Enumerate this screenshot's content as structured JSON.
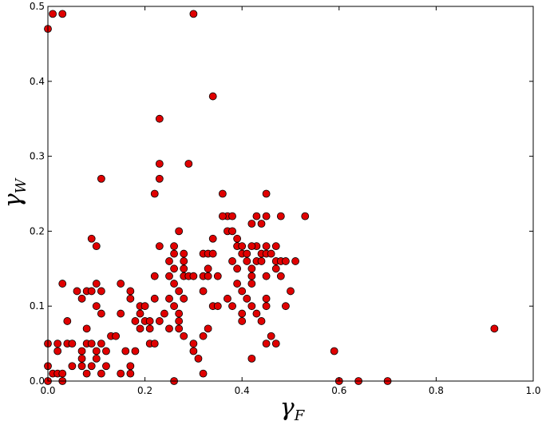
{
  "chart_data": {
    "type": "scatter",
    "title": "",
    "xlabel": "γ",
    "xlabel_sub": "F",
    "ylabel": "γ",
    "ylabel_sub": "W",
    "xlim": [
      0.0,
      1.0
    ],
    "ylim": [
      0.0,
      0.5
    ],
    "xticks": [
      0.0,
      0.2,
      0.4,
      0.6,
      0.8,
      1.0
    ],
    "xtick_labels": [
      "0.0",
      "0.2",
      "0.4",
      "0.6",
      "0.8",
      "1.0"
    ],
    "yticks": [
      0.0,
      0.1,
      0.2,
      0.3,
      0.4,
      0.5
    ],
    "ytick_labels": [
      "0.0",
      "0.1",
      "0.2",
      "0.3",
      "0.4",
      "0.5"
    ],
    "grid": false,
    "legend": "none",
    "marker_color": "#e00000",
    "series": [
      {
        "points": [
          [
            0.0,
            0.47
          ],
          [
            0.01,
            0.49
          ],
          [
            0.03,
            0.49
          ],
          [
            0.3,
            0.49
          ],
          [
            0.34,
            0.38
          ],
          [
            0.23,
            0.35
          ],
          [
            0.23,
            0.29
          ],
          [
            0.29,
            0.29
          ],
          [
            0.11,
            0.27
          ],
          [
            0.23,
            0.27
          ],
          [
            0.22,
            0.25
          ],
          [
            0.36,
            0.25
          ],
          [
            0.45,
            0.25
          ],
          [
            0.37,
            0.22
          ],
          [
            0.38,
            0.22
          ],
          [
            0.36,
            0.22
          ],
          [
            0.43,
            0.22
          ],
          [
            0.45,
            0.22
          ],
          [
            0.48,
            0.22
          ],
          [
            0.53,
            0.22
          ],
          [
            0.44,
            0.21
          ],
          [
            0.42,
            0.21
          ],
          [
            0.27,
            0.2
          ],
          [
            0.37,
            0.2
          ],
          [
            0.38,
            0.2
          ],
          [
            0.39,
            0.19
          ],
          [
            0.34,
            0.19
          ],
          [
            0.09,
            0.19
          ],
          [
            0.23,
            0.18
          ],
          [
            0.26,
            0.18
          ],
          [
            0.43,
            0.18
          ],
          [
            0.45,
            0.18
          ],
          [
            0.47,
            0.18
          ],
          [
            0.1,
            0.18
          ],
          [
            0.39,
            0.18
          ],
          [
            0.4,
            0.18
          ],
          [
            0.42,
            0.18
          ],
          [
            0.26,
            0.17
          ],
          [
            0.28,
            0.17
          ],
          [
            0.32,
            0.17
          ],
          [
            0.33,
            0.17
          ],
          [
            0.34,
            0.17
          ],
          [
            0.4,
            0.17
          ],
          [
            0.41,
            0.17
          ],
          [
            0.44,
            0.17
          ],
          [
            0.45,
            0.17
          ],
          [
            0.46,
            0.17
          ],
          [
            0.43,
            0.16
          ],
          [
            0.25,
            0.16
          ],
          [
            0.28,
            0.16
          ],
          [
            0.38,
            0.16
          ],
          [
            0.41,
            0.16
          ],
          [
            0.44,
            0.16
          ],
          [
            0.47,
            0.16
          ],
          [
            0.48,
            0.16
          ],
          [
            0.49,
            0.16
          ],
          [
            0.51,
            0.16
          ],
          [
            0.33,
            0.15
          ],
          [
            0.26,
            0.15
          ],
          [
            0.28,
            0.15
          ],
          [
            0.39,
            0.15
          ],
          [
            0.42,
            0.15
          ],
          [
            0.47,
            0.15
          ],
          [
            0.22,
            0.14
          ],
          [
            0.25,
            0.14
          ],
          [
            0.28,
            0.14
          ],
          [
            0.29,
            0.14
          ],
          [
            0.3,
            0.14
          ],
          [
            0.32,
            0.14
          ],
          [
            0.33,
            0.14
          ],
          [
            0.35,
            0.14
          ],
          [
            0.42,
            0.14
          ],
          [
            0.45,
            0.14
          ],
          [
            0.48,
            0.14
          ],
          [
            0.03,
            0.13
          ],
          [
            0.1,
            0.13
          ],
          [
            0.15,
            0.13
          ],
          [
            0.39,
            0.13
          ],
          [
            0.26,
            0.13
          ],
          [
            0.42,
            0.13
          ],
          [
            0.06,
            0.12
          ],
          [
            0.08,
            0.12
          ],
          [
            0.09,
            0.12
          ],
          [
            0.11,
            0.12
          ],
          [
            0.17,
            0.12
          ],
          [
            0.27,
            0.12
          ],
          [
            0.32,
            0.12
          ],
          [
            0.4,
            0.12
          ],
          [
            0.5,
            0.12
          ],
          [
            0.07,
            0.11
          ],
          [
            0.17,
            0.11
          ],
          [
            0.22,
            0.11
          ],
          [
            0.25,
            0.11
          ],
          [
            0.28,
            0.11
          ],
          [
            0.37,
            0.11
          ],
          [
            0.41,
            0.11
          ],
          [
            0.45,
            0.11
          ],
          [
            0.1,
            0.1
          ],
          [
            0.19,
            0.1
          ],
          [
            0.2,
            0.1
          ],
          [
            0.26,
            0.1
          ],
          [
            0.34,
            0.1
          ],
          [
            0.35,
            0.1
          ],
          [
            0.38,
            0.1
          ],
          [
            0.42,
            0.1
          ],
          [
            0.45,
            0.1
          ],
          [
            0.49,
            0.1
          ],
          [
            0.11,
            0.09
          ],
          [
            0.15,
            0.09
          ],
          [
            0.19,
            0.09
          ],
          [
            0.24,
            0.09
          ],
          [
            0.27,
            0.09
          ],
          [
            0.4,
            0.09
          ],
          [
            0.43,
            0.09
          ],
          [
            0.04,
            0.08
          ],
          [
            0.18,
            0.08
          ],
          [
            0.2,
            0.08
          ],
          [
            0.21,
            0.08
          ],
          [
            0.23,
            0.08
          ],
          [
            0.27,
            0.08
          ],
          [
            0.4,
            0.08
          ],
          [
            0.44,
            0.08
          ],
          [
            0.08,
            0.07
          ],
          [
            0.19,
            0.07
          ],
          [
            0.21,
            0.07
          ],
          [
            0.25,
            0.07
          ],
          [
            0.27,
            0.07
          ],
          [
            0.33,
            0.07
          ],
          [
            0.92,
            0.07
          ],
          [
            0.13,
            0.06
          ],
          [
            0.14,
            0.06
          ],
          [
            0.28,
            0.06
          ],
          [
            0.32,
            0.06
          ],
          [
            0.46,
            0.06
          ],
          [
            0.0,
            0.05
          ],
          [
            0.02,
            0.05
          ],
          [
            0.04,
            0.05
          ],
          [
            0.05,
            0.05
          ],
          [
            0.08,
            0.05
          ],
          [
            0.09,
            0.05
          ],
          [
            0.11,
            0.05
          ],
          [
            0.21,
            0.05
          ],
          [
            0.22,
            0.05
          ],
          [
            0.3,
            0.05
          ],
          [
            0.45,
            0.05
          ],
          [
            0.47,
            0.05
          ],
          [
            0.02,
            0.04
          ],
          [
            0.07,
            0.04
          ],
          [
            0.1,
            0.04
          ],
          [
            0.12,
            0.04
          ],
          [
            0.16,
            0.04
          ],
          [
            0.18,
            0.04
          ],
          [
            0.3,
            0.04
          ],
          [
            0.59,
            0.04
          ],
          [
            0.07,
            0.03
          ],
          [
            0.1,
            0.03
          ],
          [
            0.31,
            0.03
          ],
          [
            0.42,
            0.03
          ],
          [
            0.0,
            0.02
          ],
          [
            0.05,
            0.02
          ],
          [
            0.07,
            0.02
          ],
          [
            0.09,
            0.02
          ],
          [
            0.12,
            0.02
          ],
          [
            0.17,
            0.02
          ],
          [
            0.01,
            0.01
          ],
          [
            0.02,
            0.01
          ],
          [
            0.03,
            0.01
          ],
          [
            0.08,
            0.01
          ],
          [
            0.11,
            0.01
          ],
          [
            0.15,
            0.01
          ],
          [
            0.17,
            0.01
          ],
          [
            0.32,
            0.01
          ],
          [
            0.0,
            0.0
          ],
          [
            0.03,
            0.0
          ],
          [
            0.26,
            0.0
          ],
          [
            0.6,
            0.0
          ],
          [
            0.64,
            0.0
          ],
          [
            0.7,
            0.0
          ]
        ]
      }
    ]
  }
}
